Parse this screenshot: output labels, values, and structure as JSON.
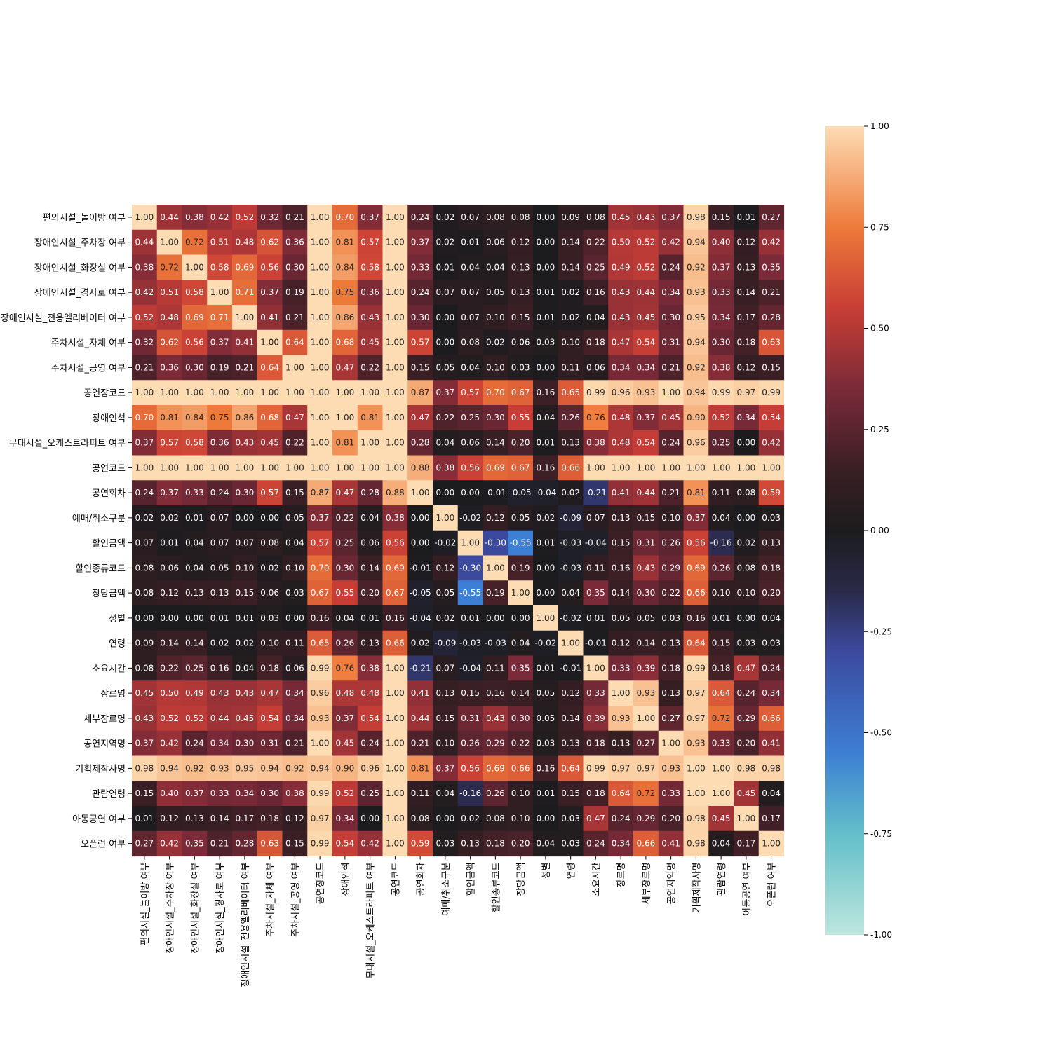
{
  "chart_data": {
    "type": "heatmap",
    "title": "",
    "xlabel": "",
    "ylabel": "",
    "labels": [
      "편의시설_놀이방 여부",
      "장애인시설_주차장 여부",
      "장애인시설_화장실 여부",
      "장애인시설_경사로 여부",
      "장애인시설_전용엘리베이터 여부",
      "주차시설_자체 여부",
      "주차시설_공영 여부",
      "공연장코드",
      "장애인석",
      "무대시설_오케스트라피트 여부",
      "공연코드",
      "공연회차",
      "예매/취소구분",
      "할인금액",
      "할인종류코드",
      "장당금액",
      "성별",
      "연령",
      "소요시간",
      "장르명",
      "세부장르명",
      "공연지역명",
      "기획제작사명",
      "관람연령",
      "아동공연 여부",
      "오픈런 여부"
    ],
    "matrix": [
      [
        1.0,
        0.44,
        0.38,
        0.42,
        0.52,
        0.32,
        0.21,
        1.0,
        0.7,
        0.37,
        1.0,
        0.24,
        0.02,
        0.07,
        0.08,
        0.08,
        0.0,
        0.09,
        0.08,
        0.45,
        0.43,
        0.37,
        0.98,
        0.15,
        0.01,
        0.27
      ],
      [
        0.44,
        1.0,
        0.72,
        0.51,
        0.48,
        0.62,
        0.36,
        1.0,
        0.81,
        0.57,
        1.0,
        0.37,
        0.02,
        0.01,
        0.06,
        0.12,
        0.0,
        0.14,
        0.22,
        0.5,
        0.52,
        0.42,
        0.94,
        0.4,
        0.12,
        0.42
      ],
      [
        0.38,
        0.72,
        1.0,
        0.58,
        0.69,
        0.56,
        0.3,
        1.0,
        0.84,
        0.58,
        1.0,
        0.33,
        0.01,
        0.04,
        0.04,
        0.13,
        0.0,
        0.14,
        0.25,
        0.49,
        0.52,
        0.24,
        0.92,
        0.37,
        0.13,
        0.35
      ],
      [
        0.42,
        0.51,
        0.58,
        1.0,
        0.71,
        0.37,
        0.19,
        1.0,
        0.75,
        0.36,
        1.0,
        0.24,
        0.07,
        0.07,
        0.05,
        0.13,
        0.01,
        0.02,
        0.16,
        0.43,
        0.44,
        0.34,
        0.93,
        0.33,
        0.14,
        0.21
      ],
      [
        0.52,
        0.48,
        0.69,
        0.71,
        1.0,
        0.41,
        0.21,
        1.0,
        0.86,
        0.43,
        1.0,
        0.3,
        0.0,
        0.07,
        0.1,
        0.15,
        0.01,
        0.02,
        0.04,
        0.43,
        0.45,
        0.3,
        0.95,
        0.34,
        0.17,
        0.28
      ],
      [
        0.32,
        0.62,
        0.56,
        0.37,
        0.41,
        1.0,
        0.64,
        1.0,
        0.68,
        0.45,
        1.0,
        0.57,
        0.0,
        0.08,
        0.02,
        0.06,
        0.03,
        0.1,
        0.18,
        0.47,
        0.54,
        0.31,
        0.94,
        0.3,
        0.18,
        0.63
      ],
      [
        0.21,
        0.36,
        0.3,
        0.19,
        0.21,
        0.64,
        1.0,
        1.0,
        0.47,
        0.22,
        1.0,
        0.15,
        0.05,
        0.04,
        0.1,
        0.03,
        0.0,
        0.11,
        0.06,
        0.34,
        0.34,
        0.21,
        0.92,
        0.38,
        0.12,
        0.15
      ],
      [
        1.0,
        1.0,
        1.0,
        1.0,
        1.0,
        1.0,
        1.0,
        1.0,
        1.0,
        1.0,
        1.0,
        0.87,
        0.37,
        0.57,
        0.7,
        0.67,
        0.16,
        0.65,
        0.99,
        0.96,
        0.93,
        1.0,
        0.94,
        0.99,
        0.97,
        0.99
      ],
      [
        0.7,
        0.81,
        0.84,
        0.75,
        0.86,
        0.68,
        0.47,
        1.0,
        1.0,
        0.81,
        1.0,
        0.47,
        0.22,
        0.25,
        0.3,
        0.55,
        0.04,
        0.26,
        0.76,
        0.48,
        0.37,
        0.45,
        0.9,
        0.52,
        0.34,
        0.54
      ],
      [
        0.37,
        0.57,
        0.58,
        0.36,
        0.43,
        0.45,
        0.22,
        1.0,
        0.81,
        1.0,
        1.0,
        0.28,
        0.04,
        0.06,
        0.14,
        0.2,
        0.01,
        0.13,
        0.38,
        0.48,
        0.54,
        0.24,
        0.96,
        0.25,
        0.0,
        0.42
      ],
      [
        1.0,
        1.0,
        1.0,
        1.0,
        1.0,
        1.0,
        1.0,
        1.0,
        1.0,
        1.0,
        1.0,
        0.88,
        0.38,
        0.56,
        0.69,
        0.67,
        0.16,
        0.66,
        1.0,
        1.0,
        1.0,
        1.0,
        1.0,
        1.0,
        1.0,
        1.0
      ],
      [
        0.24,
        0.37,
        0.33,
        0.24,
        0.3,
        0.57,
        0.15,
        0.87,
        0.47,
        0.28,
        0.88,
        1.0,
        0.0,
        0.0,
        -0.01,
        -0.05,
        -0.04,
        0.02,
        -0.21,
        0.41,
        0.44,
        0.21,
        0.81,
        0.11,
        0.08,
        0.59
      ],
      [
        0.02,
        0.02,
        0.01,
        0.07,
        0.0,
        0.0,
        0.05,
        0.37,
        0.22,
        0.04,
        0.38,
        0.0,
        1.0,
        -0.02,
        0.12,
        0.05,
        0.02,
        -0.09,
        0.07,
        0.13,
        0.15,
        0.1,
        0.37,
        0.04,
        0.0,
        0.03
      ],
      [
        0.07,
        0.01,
        0.04,
        0.07,
        0.07,
        0.08,
        0.04,
        0.57,
        0.25,
        0.06,
        0.56,
        0.0,
        -0.02,
        1.0,
        -0.3,
        -0.55,
        0.01,
        -0.03,
        -0.04,
        0.15,
        0.31,
        0.26,
        0.56,
        -0.16,
        0.02,
        0.13
      ],
      [
        0.08,
        0.06,
        0.04,
        0.05,
        0.1,
        0.02,
        0.1,
        0.7,
        0.3,
        0.14,
        0.69,
        -0.01,
        0.12,
        -0.3,
        1.0,
        0.19,
        -0.0,
        -0.03,
        0.11,
        0.16,
        0.43,
        0.29,
        0.69,
        0.26,
        0.08,
        0.18
      ],
      [
        0.08,
        0.12,
        0.13,
        0.13,
        0.15,
        0.06,
        0.03,
        0.67,
        0.55,
        0.2,
        0.67,
        -0.05,
        0.05,
        -0.55,
        0.19,
        1.0,
        0.0,
        0.04,
        0.35,
        0.14,
        0.3,
        0.22,
        0.66,
        0.1,
        0.1,
        0.2
      ],
      [
        0.0,
        0.0,
        0.0,
        0.01,
        0.01,
        0.03,
        0.0,
        0.16,
        0.04,
        0.01,
        0.16,
        -0.04,
        0.02,
        0.01,
        -0.0,
        0.0,
        1.0,
        -0.02,
        0.01,
        0.05,
        0.05,
        0.03,
        0.16,
        0.01,
        0.0,
        0.04
      ],
      [
        0.09,
        0.14,
        0.14,
        0.02,
        0.02,
        0.1,
        0.11,
        0.65,
        0.26,
        0.13,
        0.66,
        0.02,
        -0.09,
        -0.03,
        -0.03,
        0.04,
        -0.02,
        1.0,
        -0.01,
        0.12,
        0.14,
        0.13,
        0.64,
        0.15,
        0.03,
        0.03
      ],
      [
        0.08,
        0.22,
        0.25,
        0.16,
        0.04,
        0.18,
        0.06,
        0.99,
        0.76,
        0.38,
        1.0,
        -0.21,
        0.07,
        -0.04,
        0.11,
        0.35,
        0.01,
        -0.01,
        1.0,
        0.33,
        0.39,
        0.18,
        0.99,
        0.18,
        0.47,
        0.24
      ],
      [
        0.45,
        0.5,
        0.49,
        0.43,
        0.43,
        0.47,
        0.34,
        0.96,
        0.48,
        0.48,
        1.0,
        0.41,
        0.13,
        0.15,
        0.16,
        0.14,
        0.05,
        0.12,
        0.33,
        1.0,
        0.93,
        0.13,
        0.97,
        0.64,
        0.24,
        0.34
      ],
      [
        0.43,
        0.52,
        0.52,
        0.44,
        0.45,
        0.54,
        0.34,
        0.93,
        0.37,
        0.54,
        1.0,
        0.44,
        0.15,
        0.31,
        0.43,
        0.3,
        0.05,
        0.14,
        0.39,
        0.93,
        1.0,
        0.27,
        0.97,
        0.72,
        0.29,
        0.66
      ],
      [
        0.37,
        0.42,
        0.24,
        0.34,
        0.3,
        0.31,
        0.21,
        1.0,
        0.45,
        0.24,
        1.0,
        0.21,
        0.1,
        0.26,
        0.29,
        0.22,
        0.03,
        0.13,
        0.18,
        0.13,
        0.27,
        1.0,
        0.93,
        0.33,
        0.2,
        0.41
      ],
      [
        0.98,
        0.94,
        0.92,
        0.93,
        0.95,
        0.94,
        0.92,
        0.94,
        0.9,
        0.96,
        1.0,
        0.81,
        0.37,
        0.56,
        0.69,
        0.66,
        0.16,
        0.64,
        0.99,
        0.97,
        0.97,
        0.93,
        1.0,
        1.0,
        0.98,
        0.98
      ],
      [
        0.15,
        0.4,
        0.37,
        0.33,
        0.34,
        0.3,
        0.38,
        0.99,
        0.52,
        0.25,
        1.0,
        0.11,
        0.04,
        -0.16,
        0.26,
        0.1,
        0.01,
        0.15,
        0.18,
        0.64,
        0.72,
        0.33,
        1.0,
        1.0,
        0.45,
        0.04
      ],
      [
        0.01,
        0.12,
        0.13,
        0.14,
        0.17,
        0.18,
        0.12,
        0.97,
        0.34,
        0.0,
        1.0,
        0.08,
        0.0,
        0.02,
        0.08,
        0.1,
        0.0,
        0.03,
        0.47,
        0.24,
        0.29,
        0.2,
        0.98,
        0.45,
        1.0,
        0.17
      ],
      [
        0.27,
        0.42,
        0.35,
        0.21,
        0.28,
        0.63,
        0.15,
        0.99,
        0.54,
        0.42,
        1.0,
        0.59,
        0.03,
        0.13,
        0.18,
        0.2,
        0.04,
        0.03,
        0.24,
        0.34,
        0.66,
        0.41,
        0.98,
        0.04,
        0.17,
        1.0
      ]
    ],
    "vmin": -1.0,
    "vmax": 1.0,
    "colormap": "icefire",
    "colorbar_ticks": [
      "1.00",
      "0.75",
      "0.50",
      "0.25",
      "0.00",
      "-0.25",
      "-0.50",
      "-0.75",
      "-1.00"
    ],
    "colorbar_position": "right",
    "annotation_format": "2 decimals",
    "grid": false,
    "colormap_stops": [
      {
        "v": -1.0,
        "color": "#bde6dd"
      },
      {
        "v": -0.75,
        "color": "#62bfc9"
      },
      {
        "v": -0.55,
        "color": "#3d7fd4"
      },
      {
        "v": -0.3,
        "color": "#3c4a9e"
      },
      {
        "v": -0.15,
        "color": "#2a2a4a"
      },
      {
        "v": 0.0,
        "color": "#1c1c1e"
      },
      {
        "v": 0.15,
        "color": "#3a1f24"
      },
      {
        "v": 0.35,
        "color": "#7a2a38"
      },
      {
        "v": 0.55,
        "color": "#c83e36"
      },
      {
        "v": 0.75,
        "color": "#ee7a3a"
      },
      {
        "v": 1.0,
        "color": "#fddcb4"
      }
    ]
  }
}
